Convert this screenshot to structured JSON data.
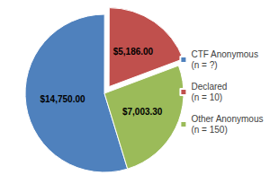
{
  "chart_data": {
    "type": "pie",
    "categories": [
      "CTF Anonymous (n = ?)",
      "Declared (n = 10)",
      "Other Anonymous (n = 150)"
    ],
    "values": [
      14750,
      5186,
      7003.3
    ],
    "value_labels": [
      "$14,750.00",
      "$5,186.00",
      "$7,003.30"
    ],
    "colors": [
      "#4f81bd",
      "#c0504d",
      "#9bbb59"
    ],
    "data_labels": true,
    "legend": "right"
  }
}
